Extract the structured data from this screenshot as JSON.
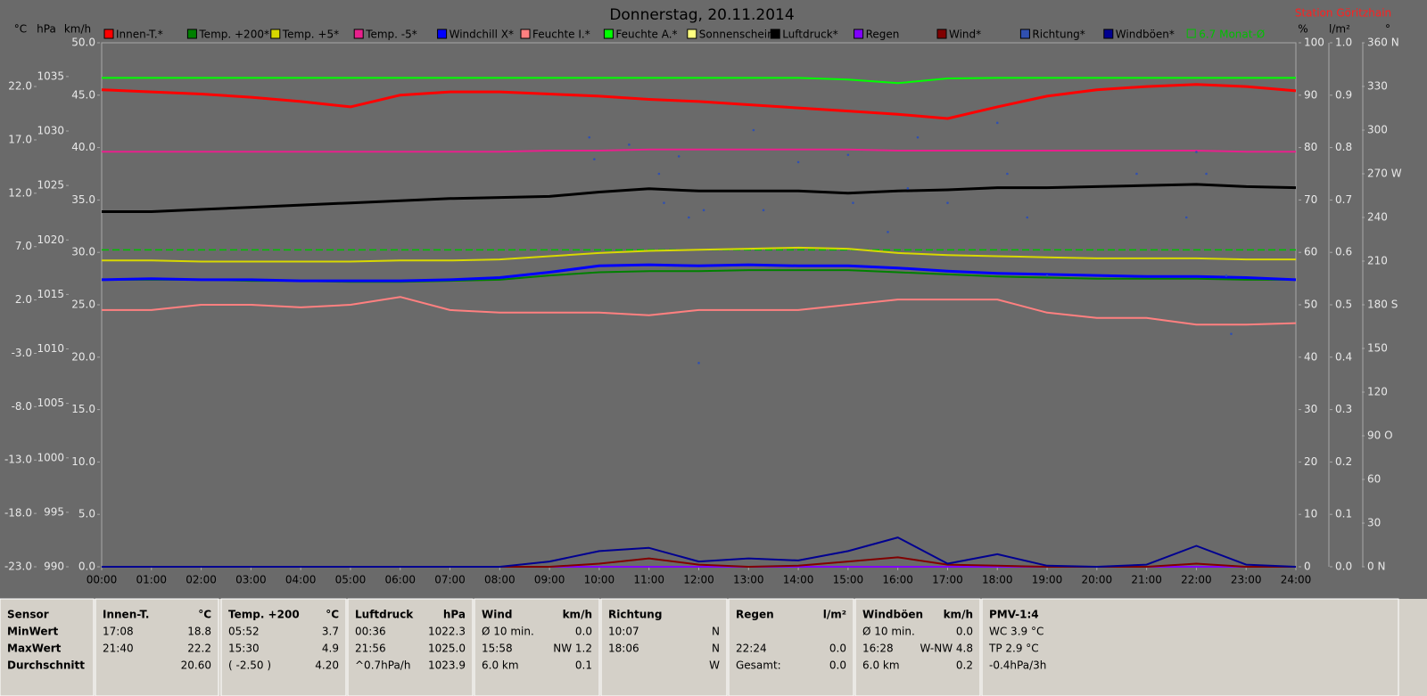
{
  "chart_data": {
    "type": "line",
    "title": "Donnerstag, 20.11.2014",
    "station": "Station Göritzhain",
    "xlim": [
      0,
      24
    ],
    "x": [
      0,
      1,
      2,
      3,
      4,
      5,
      6,
      7,
      8,
      9,
      10,
      11,
      12,
      13,
      14,
      15,
      16,
      17,
      18,
      19,
      20,
      21,
      22,
      23,
      24
    ],
    "xticks": [
      {
        "value": 0,
        "label": "00:00"
      },
      {
        "value": 1,
        "label": "01:00"
      },
      {
        "value": 2,
        "label": "02:00"
      },
      {
        "value": 3,
        "label": "03:00"
      },
      {
        "value": 4,
        "label": "04:00"
      },
      {
        "value": 5,
        "label": "05:00"
      },
      {
        "value": 6,
        "label": "06:00"
      },
      {
        "value": 7,
        "label": "07:00"
      },
      {
        "value": 8,
        "label": "08:00"
      },
      {
        "value": 9,
        "label": "09:00"
      },
      {
        "value": 10,
        "label": "10:00"
      },
      {
        "value": 11,
        "label": "11:00"
      },
      {
        "value": 12,
        "label": "12:00"
      },
      {
        "value": 13,
        "label": "13:00"
      },
      {
        "value": 14,
        "label": "14:00"
      },
      {
        "value": 15,
        "label": "15:00"
      },
      {
        "value": 16,
        "label": "16:00"
      },
      {
        "value": 17,
        "label": "17:00"
      },
      {
        "value": 18,
        "label": "18:00"
      },
      {
        "value": 19,
        "label": "19:00"
      },
      {
        "value": 20,
        "label": "20:00"
      },
      {
        "value": 21,
        "label": "21:00"
      },
      {
        "value": 22,
        "label": "22:00"
      },
      {
        "value": 23,
        "label": "23:00"
      },
      {
        "value": 24,
        "label": "24:00"
      }
    ],
    "axes": [
      {
        "label": "°C",
        "side": "left",
        "lim": [
          -23,
          26.1
        ],
        "ticks": [
          {
            "value": -23,
            "label": "-23.0"
          },
          {
            "value": -18,
            "label": "-18.0"
          },
          {
            "value": -13,
            "label": "-13.0"
          },
          {
            "value": -8,
            "label": "-8.0"
          },
          {
            "value": -3,
            "label": "-3.0"
          },
          {
            "value": 2,
            "label": "2.0"
          },
          {
            "value": 7,
            "label": "7.0"
          },
          {
            "value": 12,
            "label": "12.0"
          },
          {
            "value": 17,
            "label": "17.0"
          },
          {
            "value": 22,
            "label": "22.0"
          }
        ]
      },
      {
        "label": "hPa",
        "side": "left",
        "lim": [
          990,
          1038.1
        ],
        "ticks": [
          990,
          995,
          1000,
          1005,
          1010,
          1015,
          1020,
          1025,
          1030,
          1035
        ]
      },
      {
        "label": "km/h",
        "side": "left",
        "lim": [
          0,
          50
        ],
        "ticks": [
          {
            "value": 0,
            "label": "0.0"
          },
          {
            "value": 5,
            "label": "5.0"
          },
          {
            "value": 10,
            "label": "10.0"
          },
          {
            "value": 15,
            "label": "15.0"
          },
          {
            "value": 20,
            "label": "20.0"
          },
          {
            "value": 25,
            "label": "25.0"
          },
          {
            "value": 30,
            "label": "30.0"
          },
          {
            "value": 35,
            "label": "35.0"
          },
          {
            "value": 40,
            "label": "40.0"
          },
          {
            "value": 45,
            "label": "45.0"
          },
          {
            "value": 50,
            "label": "50.0"
          }
        ]
      },
      {
        "label": "%",
        "side": "right",
        "lim": [
          0,
          100
        ],
        "ticks": [
          0,
          10,
          20,
          30,
          40,
          50,
          60,
          70,
          80,
          90,
          100
        ]
      },
      {
        "label": "l/m²",
        "side": "right",
        "lim": [
          0,
          1
        ],
        "ticks": [
          {
            "value": 0,
            "label": "0.0"
          },
          {
            "value": 0.1,
            "label": "0.1"
          },
          {
            "value": 0.2,
            "label": "0.2"
          },
          {
            "value": 0.3,
            "label": "0.3"
          },
          {
            "value": 0.4,
            "label": "0.4"
          },
          {
            "value": 0.5,
            "label": "0.5"
          },
          {
            "value": 0.6,
            "label": "0.6"
          },
          {
            "value": 0.7,
            "label": "0.7"
          },
          {
            "value": 0.8,
            "label": "0.8"
          },
          {
            "value": 0.9,
            "label": "0.9"
          },
          {
            "value": 1,
            "label": "1.0"
          }
        ]
      },
      {
        "label": "°",
        "side": "right",
        "lim": [
          0,
          360
        ],
        "ticks": [
          {
            "value": 0,
            "label": "0  N"
          },
          30,
          60,
          {
            "value": 90,
            "label": "90  O"
          },
          120,
          150,
          {
            "value": 180,
            "label": "180  S"
          },
          210,
          240,
          {
            "value": 270,
            "label": "270  W"
          },
          300,
          330,
          {
            "value": 360,
            "label": "360  N"
          }
        ]
      }
    ],
    "series": [
      {
        "name": "Innen-T.*",
        "color": "#ff0000",
        "axis": "°C",
        "width": 3,
        "values": [
          21.7,
          21.5,
          21.3,
          21.0,
          20.6,
          20.1,
          21.2,
          21.5,
          21.5,
          21.3,
          21.1,
          20.8,
          20.6,
          20.3,
          20.0,
          19.7,
          19.4,
          19.0,
          20.1,
          21.1,
          21.7,
          22.0,
          22.2,
          22.0,
          21.6
        ]
      },
      {
        "name": "Temp. +200*",
        "color": "#008000",
        "axis": "°C",
        "width": 2,
        "values": [
          3.9,
          3.9,
          3.9,
          3.8,
          3.8,
          3.7,
          3.7,
          3.8,
          3.9,
          4.3,
          4.6,
          4.7,
          4.7,
          4.8,
          4.8,
          4.8,
          4.6,
          4.4,
          4.2,
          4.1,
          4.0,
          4.0,
          4.0,
          3.9,
          3.9
        ]
      },
      {
        "name": "Temp. +5*",
        "color": "#d8d800",
        "axis": "°C",
        "width": 2,
        "values": [
          5.7,
          5.7,
          5.6,
          5.6,
          5.6,
          5.6,
          5.7,
          5.7,
          5.8,
          6.1,
          6.4,
          6.6,
          6.7,
          6.8,
          6.9,
          6.8,
          6.4,
          6.2,
          6.1,
          6.0,
          5.9,
          5.9,
          5.9,
          5.8,
          5.8
        ]
      },
      {
        "name": "Temp. -5*",
        "color": "#e8208c",
        "axis": "°C",
        "width": 2,
        "values": [
          15.9,
          15.9,
          15.9,
          15.9,
          15.9,
          15.9,
          15.9,
          15.9,
          15.9,
          16.0,
          16.0,
          16.1,
          16.1,
          16.1,
          16.1,
          16.1,
          16.0,
          16.0,
          16.0,
          16.0,
          16.0,
          16.0,
          16.0,
          15.9,
          15.9
        ]
      },
      {
        "name": "Windchill X*",
        "color": "#0000ff",
        "axis": "°C",
        "width": 3,
        "values": [
          3.9,
          4.0,
          3.9,
          3.9,
          3.8,
          3.8,
          3.8,
          3.9,
          4.1,
          4.6,
          5.2,
          5.3,
          5.2,
          5.3,
          5.2,
          5.2,
          5.0,
          4.7,
          4.5,
          4.4,
          4.3,
          4.2,
          4.2,
          4.1,
          3.9
        ]
      },
      {
        "name": "Feuchte I.*",
        "color": "#ff8080",
        "axis": "%",
        "width": 2,
        "values": [
          49,
          49,
          50,
          50,
          49.5,
          50,
          51.5,
          49,
          48.5,
          48.5,
          48.5,
          48,
          49,
          49,
          49,
          50,
          51,
          51,
          51,
          48.5,
          47.5,
          47.5,
          46.2,
          46.2,
          46.5
        ]
      },
      {
        "name": "Feuchte A.*",
        "color": "#00ff00",
        "axis": "%",
        "width": 2,
        "values": [
          93.3,
          93.3,
          93.3,
          93.3,
          93.3,
          93.3,
          93.3,
          93.3,
          93.3,
          93.3,
          93.3,
          93.3,
          93.3,
          93.3,
          93.3,
          93.0,
          92.3,
          93.2,
          93.3,
          93.3,
          93.3,
          93.3,
          93.3,
          93.3,
          93.3
        ]
      },
      {
        "name": "Sonnenschein",
        "color": "#ffff80",
        "axis": "km/h",
        "width": 2,
        "values": [
          0,
          0,
          0,
          0,
          0,
          0,
          0,
          0,
          0,
          0,
          0,
          0,
          0,
          0,
          0,
          0,
          0,
          0,
          0,
          0,
          0,
          0,
          0,
          0,
          0
        ]
      },
      {
        "name": "Luftdruck*",
        "color": "#000000",
        "axis": "hPa",
        "width": 3,
        "values": [
          1022.6,
          1022.6,
          1022.8,
          1023.0,
          1023.2,
          1023.4,
          1023.6,
          1023.8,
          1023.9,
          1024.0,
          1024.4,
          1024.7,
          1024.5,
          1024.5,
          1024.5,
          1024.3,
          1024.5,
          1024.6,
          1024.8,
          1024.8,
          1024.9,
          1025.0,
          1025.1,
          1024.9,
          1024.8
        ]
      },
      {
        "name": "Regen",
        "color": "#8000ff",
        "axis": "l/m²",
        "width": 2,
        "values": [
          0,
          0,
          0,
          0,
          0,
          0,
          0,
          0,
          0,
          0,
          0,
          0,
          0,
          0,
          0,
          0,
          0,
          0,
          0,
          0,
          0,
          0,
          0,
          0,
          0
        ]
      },
      {
        "name": "Wind*",
        "color": "#800000",
        "axis": "km/h",
        "width": 2,
        "values": [
          0,
          0,
          0,
          0,
          0,
          0,
          0,
          0,
          0,
          0,
          0.3,
          0.8,
          0.2,
          0,
          0.1,
          0.5,
          0.9,
          0.2,
          0.1,
          0,
          0,
          0,
          0.3,
          0,
          0
        ]
      },
      {
        "name": "Richtung*",
        "color": "#3050b0",
        "axis": "°",
        "type": "scatter",
        "x": [
          9.8,
          9.9,
          10.6,
          11.2,
          11.3,
          11.6,
          11.8,
          12.0,
          12.1,
          13.1,
          13.3,
          14.0,
          15.0,
          15.1,
          15.8,
          16.2,
          16.4,
          17.0,
          18.0,
          18.2,
          18.6,
          19.0,
          20.8,
          21.8,
          22.0,
          22.2,
          22.6,
          22.7
        ],
        "values": [
          295,
          280,
          290,
          270,
          250,
          282,
          240,
          140,
          245,
          300,
          245,
          278,
          283,
          250,
          230,
          260,
          295,
          250,
          305,
          270,
          240,
          200,
          270,
          240,
          285,
          270,
          200,
          160
        ]
      },
      {
        "name": "Windböen*",
        "color": "#000090",
        "axis": "km/h",
        "width": 2,
        "values": [
          0,
          0,
          0,
          0,
          0,
          0,
          0,
          0,
          0,
          0.5,
          1.5,
          1.8,
          0.5,
          0.8,
          0.6,
          1.5,
          2.8,
          0.3,
          1.2,
          0.1,
          0,
          0.2,
          2.0,
          0.2,
          0
        ]
      }
    ],
    "reference": {
      "label": "6.7 Monat-Ø",
      "value": 6.7,
      "axis": "°C",
      "color": "#00c000"
    }
  },
  "table": {
    "columns": [
      {
        "header": [
          "Sensor"
        ],
        "rows": [
          [
            "MinWert"
          ],
          [
            "MaxWert"
          ],
          [
            "Durchschnitt"
          ]
        ]
      },
      {
        "header": [
          "Innen-T.",
          "°C"
        ],
        "rows": [
          [
            "17:08",
            "18.8"
          ],
          [
            "21:40",
            "22.2"
          ],
          [
            null,
            "20.60"
          ]
        ]
      },
      {
        "header": [
          "Temp. +200",
          "°C"
        ],
        "rows": [
          [
            "05:52",
            "3.7"
          ],
          [
            "15:30",
            "4.9"
          ],
          [
            "( -2.50 )",
            "4.20"
          ]
        ]
      },
      {
        "header": [
          "Luftdruck",
          "hPa"
        ],
        "rows": [
          [
            "00:36",
            "1022.3"
          ],
          [
            "21:56",
            "1025.0"
          ],
          [
            "^0.7hPa/h",
            "1023.9"
          ]
        ]
      },
      {
        "header": [
          "Wind",
          "km/h"
        ],
        "rows": [
          [
            "Ø 10 min.",
            "0.0"
          ],
          [
            "15:58",
            "NW 1.2"
          ],
          [
            "6.0 km",
            "0.1"
          ]
        ]
      },
      {
        "header": [
          "Richtung"
        ],
        "rows": [
          [
            "10:07",
            "N"
          ],
          [
            "18:06",
            "N"
          ],
          [
            null,
            "W"
          ]
        ]
      },
      {
        "header": [
          "Regen",
          "l/m²"
        ],
        "rows": [
          [
            null,
            null
          ],
          [
            "22:24",
            "0.0"
          ],
          [
            "Gesamt:",
            "0.0"
          ]
        ]
      },
      {
        "header": [
          "Windböen",
          "km/h"
        ],
        "rows": [
          [
            "Ø 10 min.",
            "0.0"
          ],
          [
            "16:28",
            "W-NW 4.8"
          ],
          [
            "6.0 km",
            "0.2"
          ]
        ]
      },
      {
        "header": [
          "PMV-1:4"
        ],
        "rows": [
          [
            "WC 3.9 °C"
          ],
          [
            "TP 2.9 °C"
          ],
          [
            "-0.4hPa/3h"
          ]
        ]
      }
    ]
  }
}
